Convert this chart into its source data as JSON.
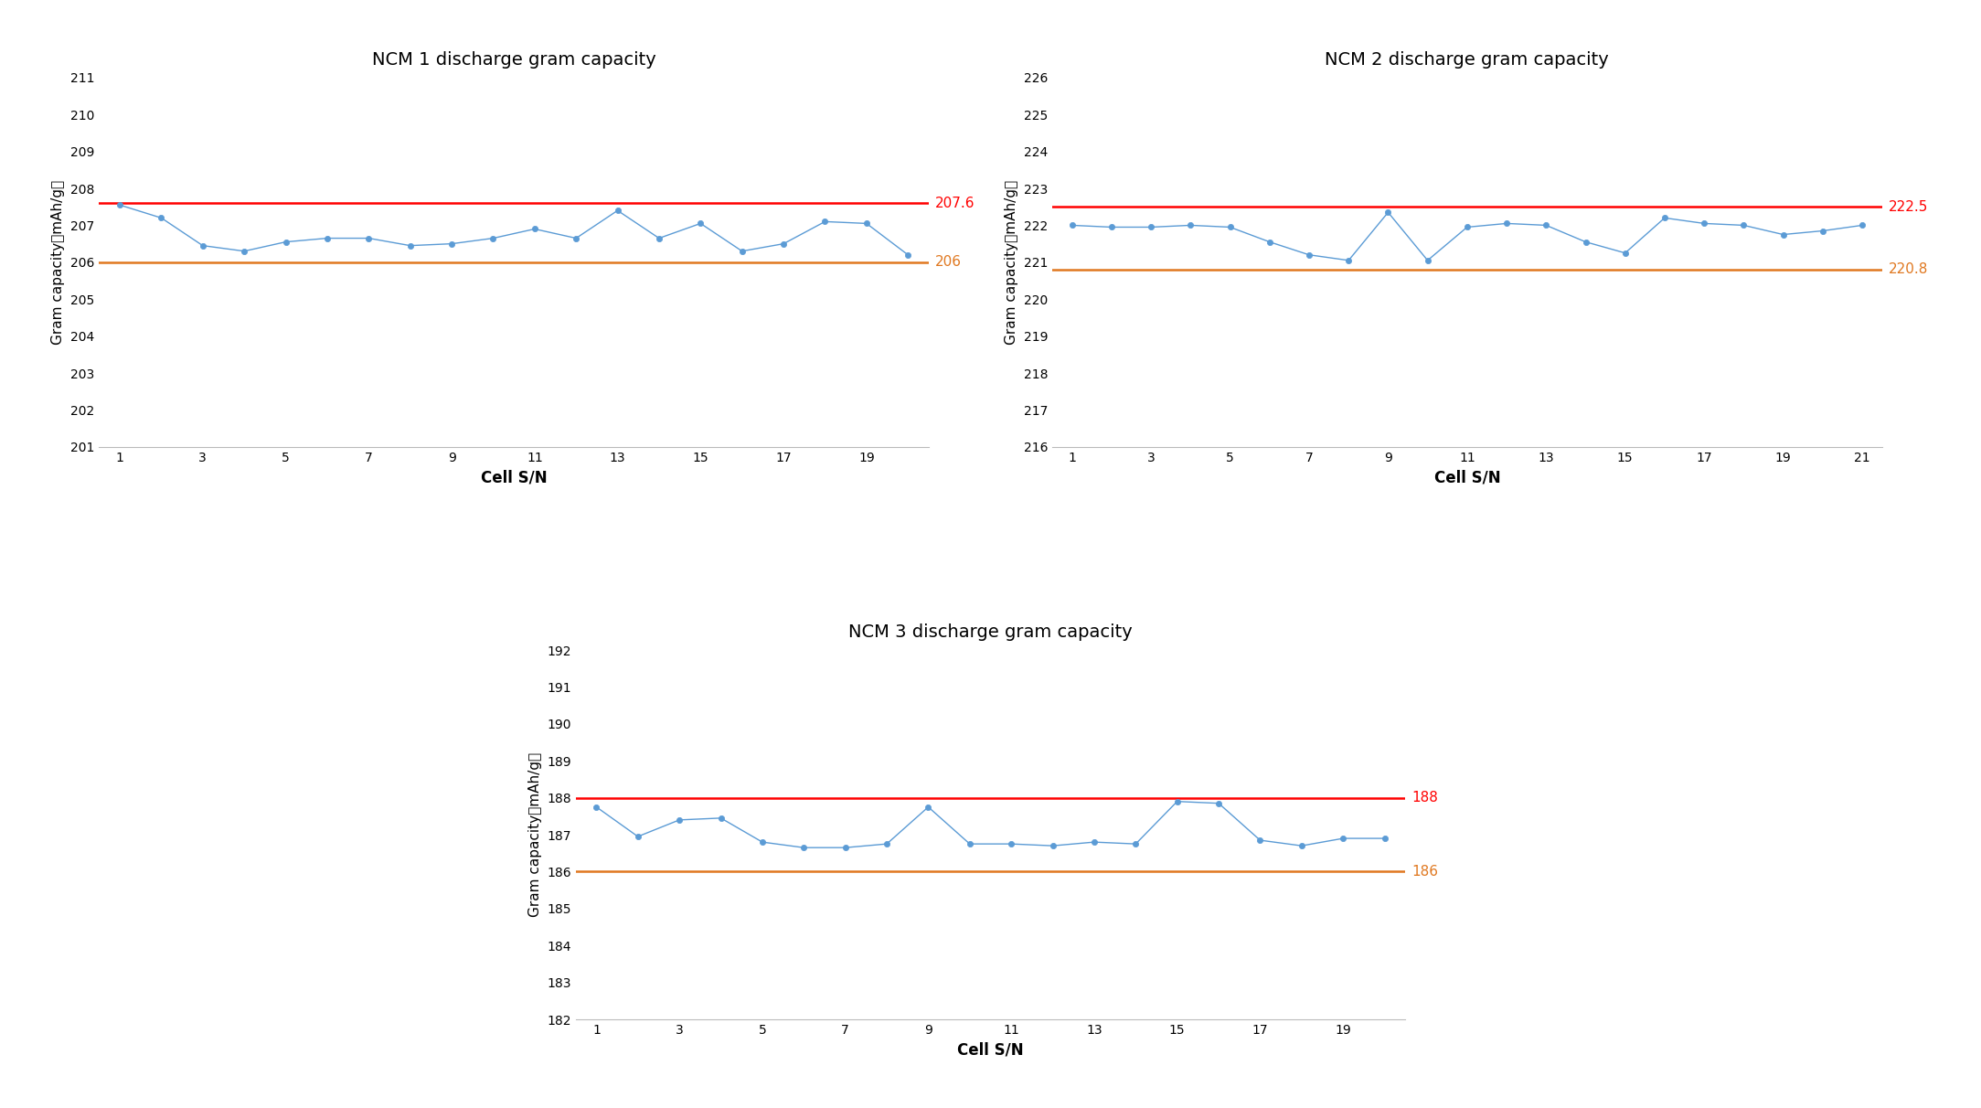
{
  "ncm1": {
    "title": "NCM 1 discharge gram capacity",
    "xlabel": "Cell S/N",
    "ylabel": "Gram capacity（mAh/g）",
    "ylim": [
      201,
      211
    ],
    "yticks": [
      201,
      202,
      203,
      204,
      205,
      206,
      207,
      208,
      209,
      210,
      211
    ],
    "red_line": 207.6,
    "red_label": "207.6",
    "orange_line": 206,
    "orange_label": "206",
    "n_points": 20,
    "data": [
      207.55,
      207.2,
      206.45,
      206.3,
      206.55,
      206.65,
      206.65,
      206.45,
      206.5,
      206.65,
      206.9,
      206.65,
      207.4,
      206.65,
      207.05,
      206.3,
      206.5,
      207.1,
      207.05,
      206.2
    ]
  },
  "ncm2": {
    "title": "NCM 2 discharge gram capacity",
    "xlabel": "Cell S/N",
    "ylabel": "Gram capacity（mAh/g）",
    "ylim": [
      216,
      226
    ],
    "yticks": [
      216,
      217,
      218,
      219,
      220,
      221,
      222,
      223,
      224,
      225,
      226
    ],
    "red_line": 222.5,
    "red_label": "222.5",
    "orange_line": 220.8,
    "orange_label": "220.8",
    "n_points": 21,
    "data": [
      222.0,
      221.95,
      221.95,
      222.0,
      221.95,
      221.55,
      221.2,
      221.05,
      222.35,
      221.05,
      221.95,
      222.05,
      222.0,
      221.55,
      221.25,
      222.2,
      222.05,
      222.0,
      221.75,
      221.85,
      222.0
    ]
  },
  "ncm3": {
    "title": "NCM 3 discharge gram capacity",
    "xlabel": "Cell S/N",
    "ylabel": "Gram capacity（mAh/g）",
    "ylim": [
      182,
      192
    ],
    "yticks": [
      182,
      183,
      184,
      185,
      186,
      187,
      188,
      189,
      190,
      191,
      192
    ],
    "red_line": 188,
    "red_label": "188",
    "orange_line": 186,
    "orange_label": "186",
    "n_points": 20,
    "data": [
      187.75,
      186.95,
      187.4,
      187.45,
      186.8,
      186.65,
      186.65,
      186.75,
      187.75,
      186.75,
      186.75,
      186.7,
      186.8,
      186.75,
      187.9,
      187.85,
      186.85,
      186.7,
      186.9,
      186.9
    ]
  },
  "line_color": "#5B9BD5",
  "marker_color": "#5B9BD5",
  "red_color": "#FF0000",
  "orange_color": "#E07820",
  "bg_color": "#FFFFFF",
  "title_fontsize": 14,
  "axis_fontsize": 11,
  "tick_fontsize": 10,
  "annotation_fontsize": 11
}
